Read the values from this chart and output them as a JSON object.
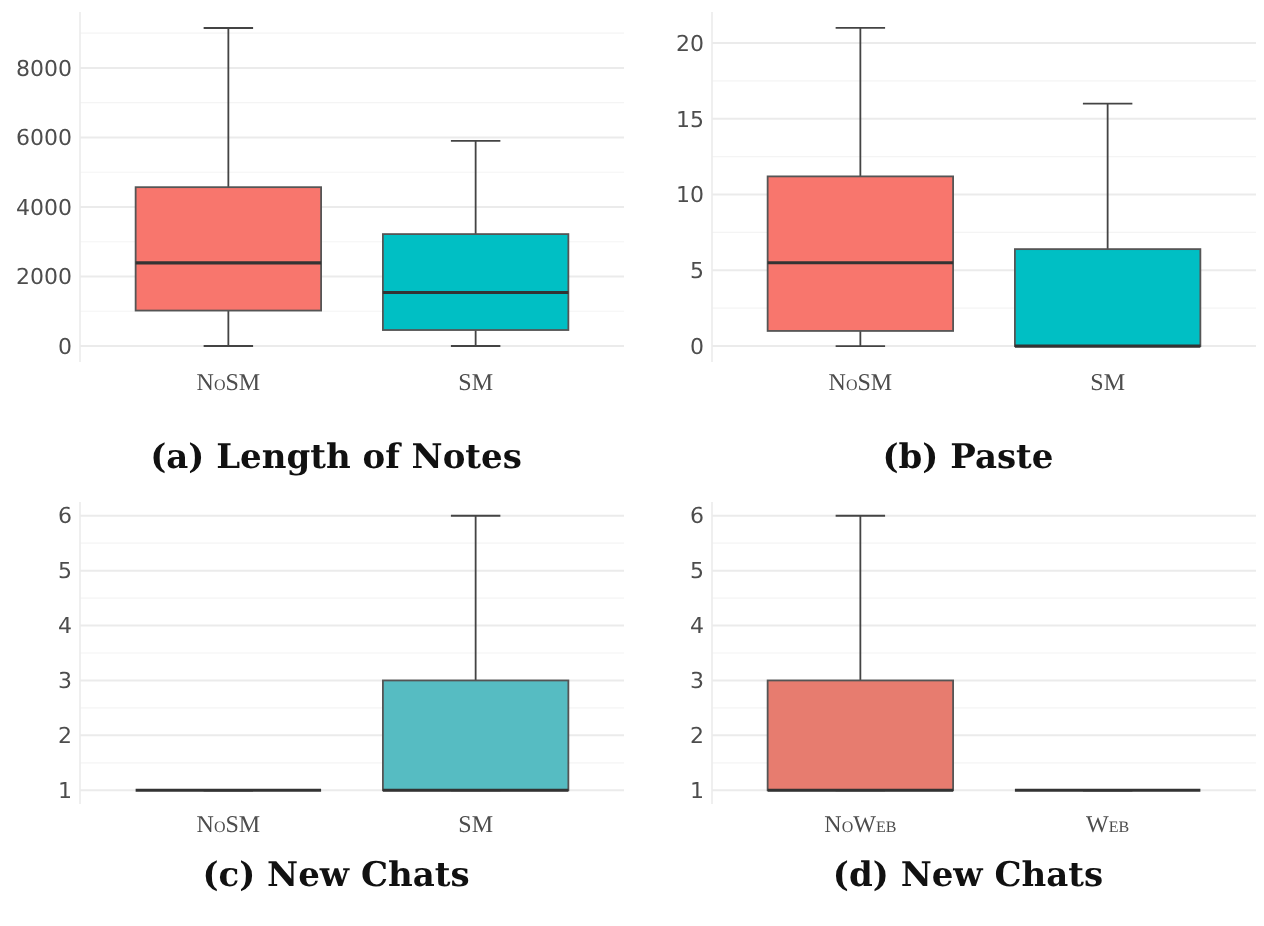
{
  "chart_data": [
    {
      "type": "box",
      "title": "(a) Length of Notes",
      "categories": [
        "NoSM",
        "SM"
      ],
      "ylim": [
        -460,
        9610
      ],
      "yticks": [
        0,
        {
          "value": 1000,
          "label": null
        },
        2000,
        {
          "value": 3000,
          "label": null
        },
        4000,
        {
          "value": 5000,
          "label": null
        },
        6000,
        {
          "value": 7000,
          "label": null
        },
        8000,
        {
          "value": 9000,
          "label": null
        }
      ],
      "grid": "y",
      "colors": [
        "#f8766d",
        "#00bfc4"
      ],
      "boxes": [
        {
          "low": 0,
          "q1": 1020,
          "median": 2390,
          "q3": 4570,
          "high": 9150
        },
        {
          "low": 0,
          "q1": 460,
          "median": 1540,
          "q3": 3220,
          "high": 5900
        }
      ]
    },
    {
      "type": "box",
      "title": "(b) Paste",
      "categories": [
        "NoSM",
        "SM"
      ],
      "ylim": [
        -1.05,
        22.05
      ],
      "yticks": [
        0,
        {
          "value": 2.5,
          "label": null
        },
        5,
        {
          "value": 7.5,
          "label": null
        },
        10,
        {
          "value": 12.5,
          "label": null
        },
        15,
        {
          "value": 17.5,
          "label": null
        },
        20
      ],
      "grid": "y",
      "colors": [
        "#f8766d",
        "#00bfc4"
      ],
      "boxes": [
        {
          "low": 0,
          "q1": 1,
          "median": 5.5,
          "q3": 11.2,
          "high": 21
        },
        {
          "low": 0,
          "q1": 0,
          "median": 0,
          "q3": 6.4,
          "high": 16
        }
      ]
    },
    {
      "type": "box",
      "title": "(c) New Chats",
      "categories": [
        "NoSM",
        "SM"
      ],
      "ylim": [
        0.75,
        6.25
      ],
      "yticks": [
        1,
        {
          "value": 1.5,
          "label": null
        },
        2,
        {
          "value": 2.5,
          "label": null
        },
        3,
        {
          "value": 3.5,
          "label": null
        },
        4,
        {
          "value": 4.5,
          "label": null
        },
        5,
        {
          "value": 5.5,
          "label": null
        },
        6
      ],
      "grid": "y",
      "colors": [
        null,
        "#56bcc2"
      ],
      "boxes": [
        {
          "low": 1,
          "q1": 1,
          "median": 1,
          "q3": 1,
          "high": 1
        },
        {
          "low": 1,
          "q1": 1,
          "median": 1,
          "q3": 3,
          "high": 6
        }
      ]
    },
    {
      "type": "box",
      "title": "(d) New Chats",
      "categories": [
        "NoWeb",
        "Web"
      ],
      "ylim": [
        0.75,
        6.25
      ],
      "yticks": [
        1,
        {
          "value": 1.5,
          "label": null
        },
        2,
        {
          "value": 2.5,
          "label": null
        },
        3,
        {
          "value": 3.5,
          "label": null
        },
        4,
        {
          "value": 4.5,
          "label": null
        },
        5,
        {
          "value": 5.5,
          "label": null
        },
        6
      ],
      "grid": "y",
      "colors": [
        "#e77c6f",
        null
      ],
      "boxes": [
        {
          "low": 1,
          "q1": 1,
          "median": 1,
          "q3": 3,
          "high": 6
        },
        {
          "low": 1,
          "q1": 1,
          "median": 1,
          "q3": 1,
          "high": 1
        }
      ]
    }
  ]
}
